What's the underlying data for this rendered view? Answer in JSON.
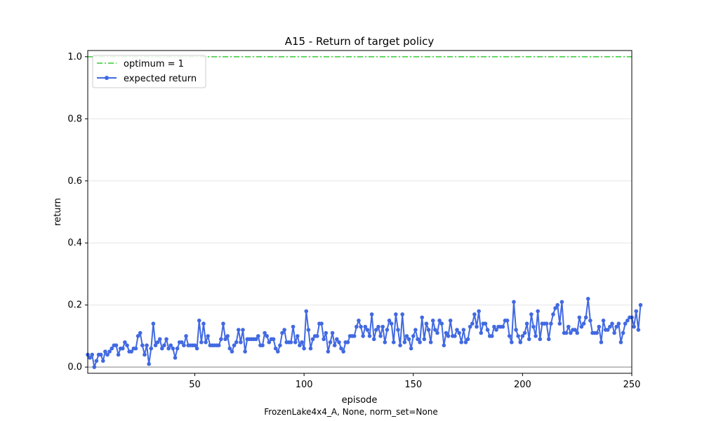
{
  "chart_data": {
    "type": "line",
    "title": "A15 - Return of target policy",
    "xlabel": "episode",
    "ylabel": "return",
    "caption": "FrozenLake4x4_A, None, norm_set=None",
    "xlim": [
      1,
      250
    ],
    "ylim": [
      -0.02,
      1.02
    ],
    "xticks": [
      50,
      100,
      150,
      200,
      250
    ],
    "yticks": [
      0.0,
      0.2,
      0.4,
      0.6,
      0.8,
      1.0
    ],
    "grid": "horizontal",
    "legend_placement": "top-left",
    "series": [
      {
        "name": "optimum = 1",
        "style": "dashdot",
        "color": "#33cc33",
        "values": [
          1.0,
          1.0
        ],
        "x": [
          1,
          250
        ]
      },
      {
        "name": "expected return",
        "style": "line-marker",
        "color": "#4169e1",
        "values": [
          0.04,
          0.03,
          0.04,
          0.0,
          0.02,
          0.04,
          0.04,
          0.02,
          0.05,
          0.04,
          0.05,
          0.06,
          0.07,
          0.07,
          0.04,
          0.06,
          0.06,
          0.08,
          0.07,
          0.05,
          0.05,
          0.06,
          0.06,
          0.1,
          0.11,
          0.07,
          0.04,
          0.07,
          0.01,
          0.06,
          0.14,
          0.07,
          0.08,
          0.09,
          0.06,
          0.07,
          0.09,
          0.06,
          0.07,
          0.06,
          0.03,
          0.06,
          0.08,
          0.08,
          0.07,
          0.1,
          0.07,
          0.07,
          0.07,
          0.07,
          0.06,
          0.15,
          0.08,
          0.14,
          0.08,
          0.1,
          0.07,
          0.07,
          0.07,
          0.07,
          0.07,
          0.09,
          0.14,
          0.09,
          0.1,
          0.06,
          0.05,
          0.07,
          0.08,
          0.12,
          0.08,
          0.12,
          0.05,
          0.09,
          0.09,
          0.09,
          0.09,
          0.09,
          0.1,
          0.07,
          0.07,
          0.11,
          0.1,
          0.08,
          0.09,
          0.09,
          0.06,
          0.05,
          0.07,
          0.11,
          0.12,
          0.08,
          0.08,
          0.08,
          0.13,
          0.08,
          0.1,
          0.07,
          0.08,
          0.06,
          0.18,
          0.12,
          0.06,
          0.09,
          0.1,
          0.1,
          0.14,
          0.14,
          0.09,
          0.11,
          0.05,
          0.08,
          0.11,
          0.07,
          0.09,
          0.08,
          0.06,
          0.05,
          0.08,
          0.08,
          0.1,
          0.1,
          0.1,
          0.13,
          0.15,
          0.13,
          0.1,
          0.13,
          0.12,
          0.1,
          0.17,
          0.09,
          0.12,
          0.13,
          0.1,
          0.13,
          0.08,
          0.12,
          0.15,
          0.14,
          0.08,
          0.17,
          0.12,
          0.07,
          0.17,
          0.08,
          0.1,
          0.09,
          0.06,
          0.1,
          0.12,
          0.09,
          0.08,
          0.16,
          0.09,
          0.14,
          0.12,
          0.08,
          0.15,
          0.12,
          0.11,
          0.15,
          0.14,
          0.07,
          0.11,
          0.1,
          0.15,
          0.1,
          0.1,
          0.12,
          0.11,
          0.08,
          0.12,
          0.08,
          0.09,
          0.13,
          0.14,
          0.17,
          0.13,
          0.18,
          0.11,
          0.14,
          0.14,
          0.12,
          0.1,
          0.1,
          0.13,
          0.12,
          0.13,
          0.13,
          0.13,
          0.15,
          0.15,
          0.1,
          0.08,
          0.21,
          0.12,
          0.1,
          0.08,
          0.1,
          0.11,
          0.14,
          0.09,
          0.17,
          0.13,
          0.1,
          0.18,
          0.09,
          0.14,
          0.14,
          0.14,
          0.09,
          0.14,
          0.17,
          0.19,
          0.2,
          0.14,
          0.21,
          0.11,
          0.11,
          0.13,
          0.11,
          0.12,
          0.12,
          0.11,
          0.16,
          0.13,
          0.14,
          0.16,
          0.22,
          0.15,
          0.11,
          0.11,
          0.11,
          0.13,
          0.08,
          0.15,
          0.12,
          0.12,
          0.13,
          0.14,
          0.11,
          0.13,
          0.14,
          0.08,
          0.11,
          0.14,
          0.15,
          0.16,
          0.16,
          0.13,
          0.18,
          0.12,
          0.2
        ]
      }
    ]
  }
}
